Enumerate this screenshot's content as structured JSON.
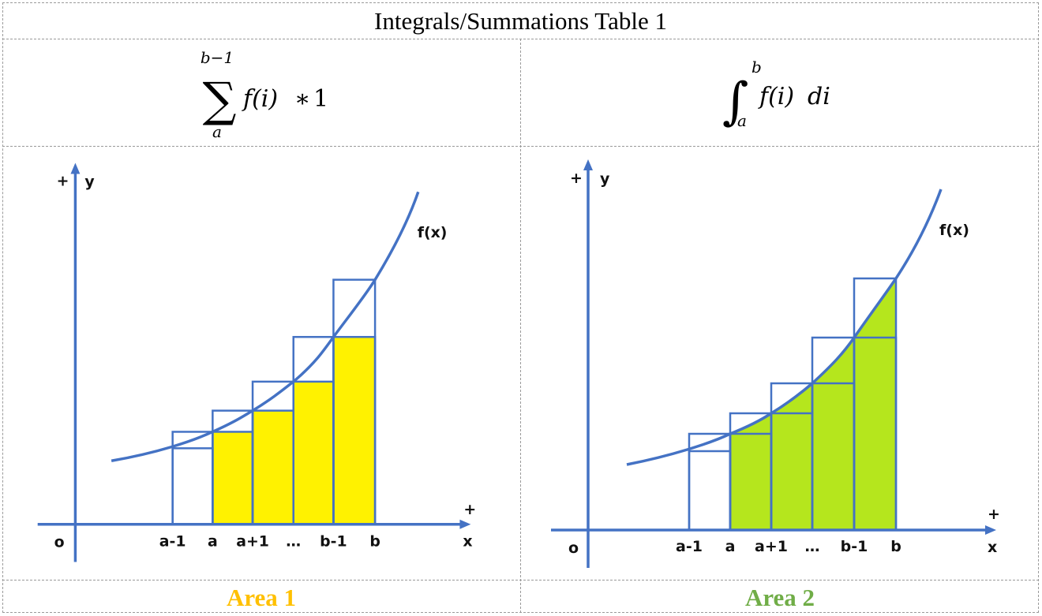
{
  "title": "Integrals/Summations Table 1",
  "left": {
    "formula": {
      "upper": "b−1",
      "lower": "a",
      "body": "f(i)",
      "times": "∗",
      "one": "1"
    },
    "curve_label": "f(x)",
    "axis": {
      "y": "y",
      "x": "x",
      "plus": "+",
      "origin": "o"
    },
    "ticks": [
      "a-1",
      "a",
      "a+1",
      "…",
      "b-1",
      "b"
    ],
    "caption": "Area 1",
    "caption_color": "#FFC000",
    "fill_color": "#FFF200"
  },
  "right": {
    "formula": {
      "upper": "b",
      "lower": "a",
      "body": "f(i)",
      "d": "di"
    },
    "curve_label": "f(x)",
    "axis": {
      "y": "y",
      "x": "x",
      "plus": "+",
      "origin": "o"
    },
    "ticks": [
      "a-1",
      "a",
      "a+1",
      "…",
      "b-1",
      "b"
    ],
    "caption": "Area 2",
    "caption_color": "#70AD47",
    "fill_color": "#B5E61D"
  },
  "line_color": "#4472C4"
}
